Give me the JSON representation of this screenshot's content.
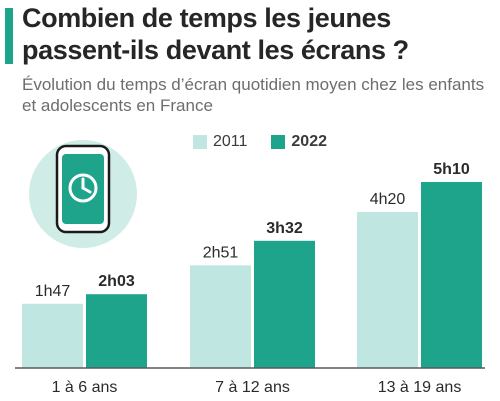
{
  "title": "Combien de temps les jeunes passent-ils devant les écrans ?",
  "subtitle": "Évolution du temps d’écran quotidien moyen chez les enfants et adolescents en France",
  "colors": {
    "accent": "#1fa48c",
    "series_2011": "#bfe6e0",
    "series_2022": "#1fa48c",
    "title_text": "#262626",
    "subtitle_text": "#6d6d6d"
  },
  "icon": "phone-clock-icon",
  "chart_data": {
    "type": "bar",
    "categories": [
      "1 à 6 ans",
      "7 à 12 ans",
      "13 à 19 ans"
    ],
    "series": [
      {
        "name": "2011",
        "values_minutes": [
          107,
          171,
          260
        ],
        "labels": [
          "1h47",
          "2h51",
          "4h20"
        ]
      },
      {
        "name": "2022",
        "values_minutes": [
          123,
          212,
          310
        ],
        "labels": [
          "2h03",
          "3h32",
          "5h10"
        ]
      }
    ],
    "legend": "top-center",
    "grid": false
  }
}
